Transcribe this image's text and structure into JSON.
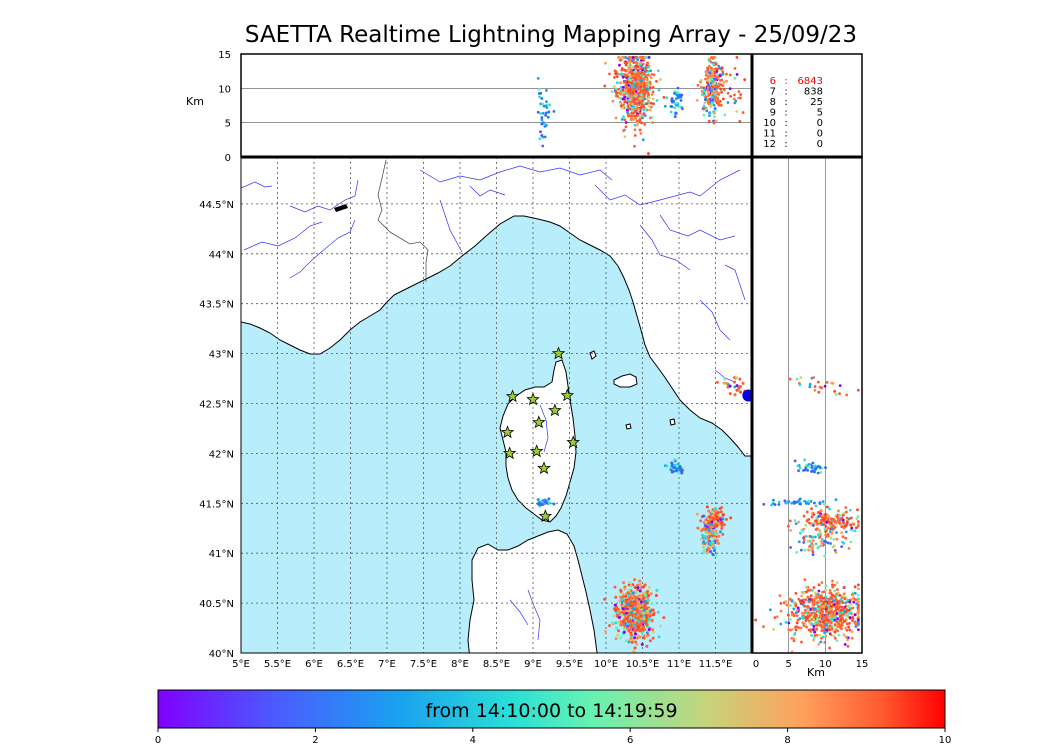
{
  "title": "SAETTA Realtime Lightning Mapping Array - 25/09/23",
  "colors": {
    "sea": "#b8edfb",
    "land": "#ffffff",
    "coast": "#000000",
    "rivers": "#3333ff",
    "borders": "#555555",
    "station_fill": "#9acd32",
    "marker_blue": "#0000ee",
    "stats_highlight": "#ff0000"
  },
  "map": {
    "lon_ticks": [
      "5°E",
      "5.5°E",
      "6°E",
      "6.5°E",
      "7°E",
      "7.5°E",
      "8°E",
      "8.5°E",
      "9°E",
      "9.5°E",
      "10°E",
      "10.5°E",
      "11°E",
      "11.5°E"
    ],
    "lat_ticks": [
      "40°N",
      "40.5°N",
      "41°N",
      "41.5°N",
      "42°N",
      "42.5°N",
      "43°N",
      "43.5°N",
      "44°N",
      "44.5°N"
    ],
    "lon_range": [
      5,
      12
    ],
    "lat_range": [
      40,
      44.97
    ],
    "grid": "dotted",
    "stations": [
      [
        9.35,
        43.0
      ],
      [
        8.72,
        42.57
      ],
      [
        9.0,
        42.54
      ],
      [
        9.47,
        42.58
      ],
      [
        9.3,
        42.43
      ],
      [
        9.08,
        42.31
      ],
      [
        8.65,
        42.21
      ],
      [
        9.55,
        42.11
      ],
      [
        8.68,
        42.0
      ],
      [
        9.05,
        42.02
      ],
      [
        9.15,
        41.85
      ],
      [
        9.17,
        41.37
      ]
    ],
    "blue_marker": [
      11.95,
      42.58
    ]
  },
  "altitude_panel": {
    "label": "Km",
    "ticks": [
      "0",
      "5",
      "10",
      "15"
    ],
    "range": [
      0,
      15
    ]
  },
  "side_panel": {
    "label": "Km",
    "ticks": [
      "0",
      "5",
      "10",
      "15"
    ],
    "range": [
      0,
      15
    ]
  },
  "stats": [
    {
      "stations": "6",
      "sep": ":",
      "count": "6843",
      "highlight": true
    },
    {
      "stations": "7",
      "sep": ":",
      "count": "838",
      "highlight": false
    },
    {
      "stations": "8",
      "sep": ":",
      "count": "25",
      "highlight": false
    },
    {
      "stations": "9",
      "sep": ":",
      "count": "5",
      "highlight": false
    },
    {
      "stations": "10",
      "sep": ":",
      "count": "0",
      "highlight": false
    },
    {
      "stations": "11",
      "sep": ":",
      "count": "0",
      "highlight": false
    },
    {
      "stations": "12",
      "sep": ":",
      "count": "0",
      "highlight": false
    }
  ],
  "lightning_clusters": [
    {
      "lon": 10.4,
      "lat": 40.4,
      "n": 700,
      "slon": 0.12,
      "slat": 0.12,
      "alt": 10,
      "salt": 2.5,
      "t": "late"
    },
    {
      "lon": 11.47,
      "lat": 41.32,
      "n": 180,
      "slon": 0.07,
      "slat": 0.06,
      "alt": 10.5,
      "salt": 2,
      "t": "late"
    },
    {
      "lon": 11.42,
      "lat": 41.12,
      "n": 80,
      "slon": 0.06,
      "slat": 0.08,
      "alt": 9,
      "salt": 2,
      "t": "mid"
    },
    {
      "lon": 10.97,
      "lat": 41.86,
      "n": 40,
      "slon": 0.06,
      "slat": 0.03,
      "alt": 8,
      "salt": 1.2,
      "t": "early"
    },
    {
      "lon": 11.78,
      "lat": 42.7,
      "n": 25,
      "slon": 0.1,
      "slat": 0.06,
      "alt": 9,
      "salt": 2,
      "t": "late"
    },
    {
      "lon": 9.15,
      "lat": 41.51,
      "n": 40,
      "slon": 0.05,
      "slat": 0.02,
      "alt": 7,
      "salt": 2.5,
      "t": "early"
    }
  ],
  "colorbar": {
    "label": "from 14:10:00 to 14:19:59",
    "ticks": [
      "0",
      "2",
      "4",
      "6",
      "8",
      "10"
    ],
    "range": [
      0,
      10
    ]
  }
}
